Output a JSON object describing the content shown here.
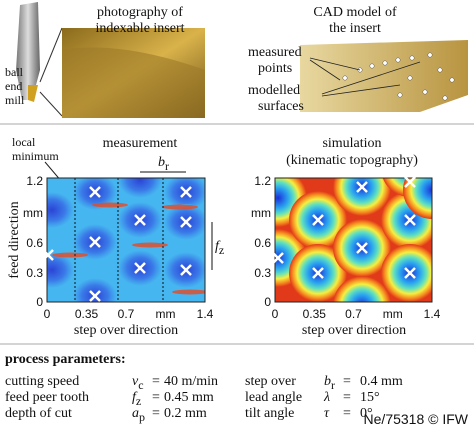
{
  "top_left": {
    "tool_label": [
      "ball",
      "end",
      "mill"
    ],
    "photo_title": [
      "photography of",
      "indexable insert"
    ]
  },
  "top_right": {
    "cad_title": [
      "CAD model of",
      "the insert"
    ],
    "measured": [
      "measured",
      "points"
    ],
    "modelled": [
      "modelled",
      "surfaces"
    ]
  },
  "measurement": {
    "title": "measurement",
    "local_minimum": [
      "local",
      "minimum"
    ],
    "br": {
      "main": "b",
      "sub": "r"
    },
    "fz": {
      "main": "f",
      "sub": "z"
    },
    "y_axis_label": "feed direction",
    "x_axis_label": "step over direction",
    "y_ticks": [
      "1.2",
      "mm",
      "0.6",
      "0.3",
      "0"
    ],
    "x_ticks": [
      "0",
      "0.35",
      "0.7",
      "mm",
      "1.4"
    ]
  },
  "simulation": {
    "title": [
      "simulation",
      "(kinematic topography)"
    ],
    "x_axis_label": "step over direction",
    "y_ticks": [
      "1.2",
      "mm",
      "0.6",
      "0.3",
      "0"
    ],
    "x_ticks": [
      "0",
      "0.35",
      "0.7",
      "mm",
      "1.4"
    ]
  },
  "parameters": {
    "heading": "process parameters:",
    "left": [
      {
        "label": "cutting speed",
        "symbol": {
          "main": "v",
          "sub": "c"
        },
        "eq": "=",
        "value": "40 m/min"
      },
      {
        "label": "feed peer tooth",
        "symbol": {
          "main": "f",
          "sub": "z"
        },
        "eq": "=",
        "value": "0.45 mm"
      },
      {
        "label": "depth of cut",
        "symbol": {
          "main": "a",
          "sub": "p"
        },
        "eq": "=",
        "value": "0.2 mm"
      }
    ],
    "right": [
      {
        "label": "step over",
        "symbol": {
          "main": "b",
          "sub": "r"
        },
        "eq": "=",
        "value": "0.4 mm"
      },
      {
        "label": "lead angle",
        "symbol": {
          "main": "λ",
          "sub": ""
        },
        "eq": "=",
        "value": "15°"
      },
      {
        "label": "tilt angle",
        "symbol": {
          "main": "τ",
          "sub": ""
        },
        "eq": "=",
        "value": "0°"
      }
    ]
  },
  "footer": "Ne/75318 © IFW"
}
